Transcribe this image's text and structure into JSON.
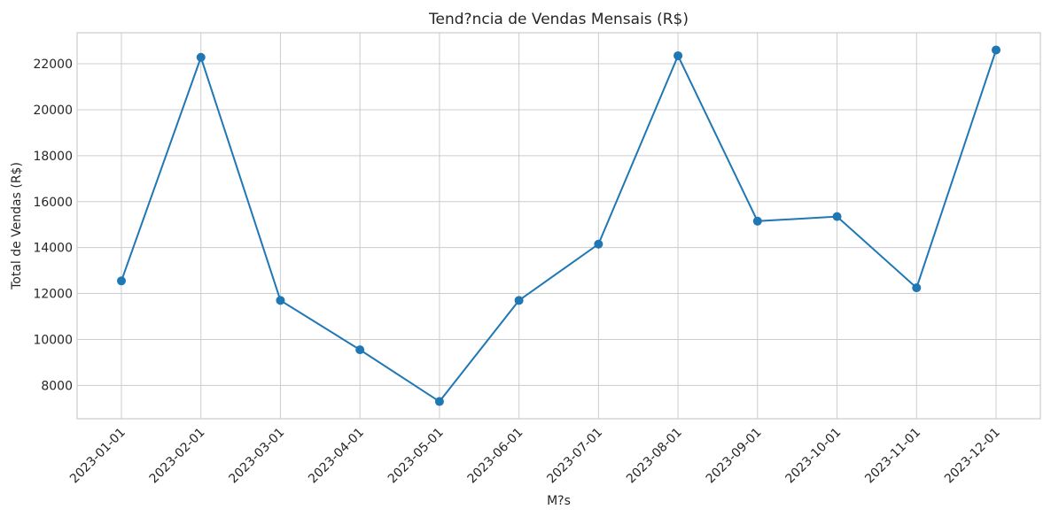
{
  "chart_data": {
    "type": "line",
    "title": "Tend?ncia de Vendas Mensais (R$)",
    "xlabel": "M?s",
    "ylabel": "Total de Vendas (R$)",
    "categories": [
      "2023-01-01",
      "2023-02-01",
      "2023-03-01",
      "2023-04-01",
      "2023-05-01",
      "2023-06-01",
      "2023-07-01",
      "2023-08-01",
      "2023-09-01",
      "2023-10-01",
      "2023-11-01",
      "2023-12-01"
    ],
    "series": [
      {
        "values": [
          12550,
          22280,
          11700,
          9550,
          7300,
          11700,
          14150,
          22350,
          15150,
          15350,
          12250,
          22600
        ],
        "color": "#1f77b4",
        "marker": "circle"
      }
    ],
    "yticks": [
      8000,
      10000,
      12000,
      14000,
      16000,
      18000,
      20000,
      22000
    ],
    "ylim": [
      6550,
      23350
    ],
    "grid": true,
    "legend": "none"
  }
}
